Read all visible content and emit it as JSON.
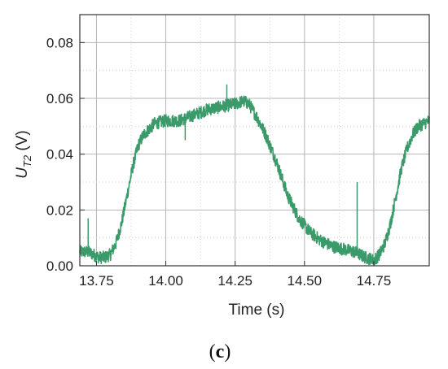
{
  "chart_data": {
    "type": "line",
    "title": "",
    "panel_label": {
      "open": "(",
      "letter": "c",
      "close": ")"
    },
    "xlabel": "Time (s)",
    "ylabel": {
      "main": "U",
      "sub": "T2",
      "unit": " (V)"
    },
    "xlim": [
      13.69,
      14.95
    ],
    "ylim": [
      0.0,
      0.09
    ],
    "xticks": [
      13.75,
      14.0,
      14.25,
      14.5,
      14.75
    ],
    "xtick_labels": [
      "13.75",
      "14.00",
      "14.25",
      "14.50",
      "14.75"
    ],
    "yticks": [
      0.0,
      0.02,
      0.04,
      0.06,
      0.08
    ],
    "ytick_labels": [
      "0.00",
      "0.02",
      "0.04",
      "0.06",
      "0.08"
    ],
    "grid": true,
    "line_color": "#3a9a6a",
    "series": [
      {
        "x": [
          13.69,
          13.72,
          13.74,
          13.76,
          13.78,
          13.8,
          13.82,
          13.84,
          13.86,
          13.88,
          13.9,
          13.92,
          13.94,
          13.96,
          14.0,
          14.05,
          14.1,
          14.15,
          14.2,
          14.25,
          14.28,
          14.3,
          14.33,
          14.36,
          14.4,
          14.44,
          14.48,
          14.52,
          14.56,
          14.6,
          14.64,
          14.68,
          14.72,
          14.75,
          14.77,
          14.79,
          14.81,
          14.83,
          14.85,
          14.87,
          14.89,
          14.91,
          14.93,
          14.95
        ],
        "y": [
          0.005,
          0.005,
          0.004,
          0.003,
          0.003,
          0.004,
          0.008,
          0.015,
          0.025,
          0.035,
          0.043,
          0.047,
          0.049,
          0.051,
          0.052,
          0.052,
          0.054,
          0.056,
          0.057,
          0.058,
          0.059,
          0.058,
          0.053,
          0.047,
          0.037,
          0.025,
          0.017,
          0.012,
          0.009,
          0.007,
          0.006,
          0.005,
          0.003,
          0.002,
          0.004,
          0.008,
          0.015,
          0.025,
          0.035,
          0.042,
          0.047,
          0.05,
          0.051,
          0.052
        ]
      }
    ],
    "spikes": [
      {
        "x": 13.72,
        "y": 0.017
      },
      {
        "x": 14.07,
        "y": 0.045
      },
      {
        "x": 14.22,
        "y": 0.065
      },
      {
        "x": 14.69,
        "y": 0.03
      }
    ]
  }
}
